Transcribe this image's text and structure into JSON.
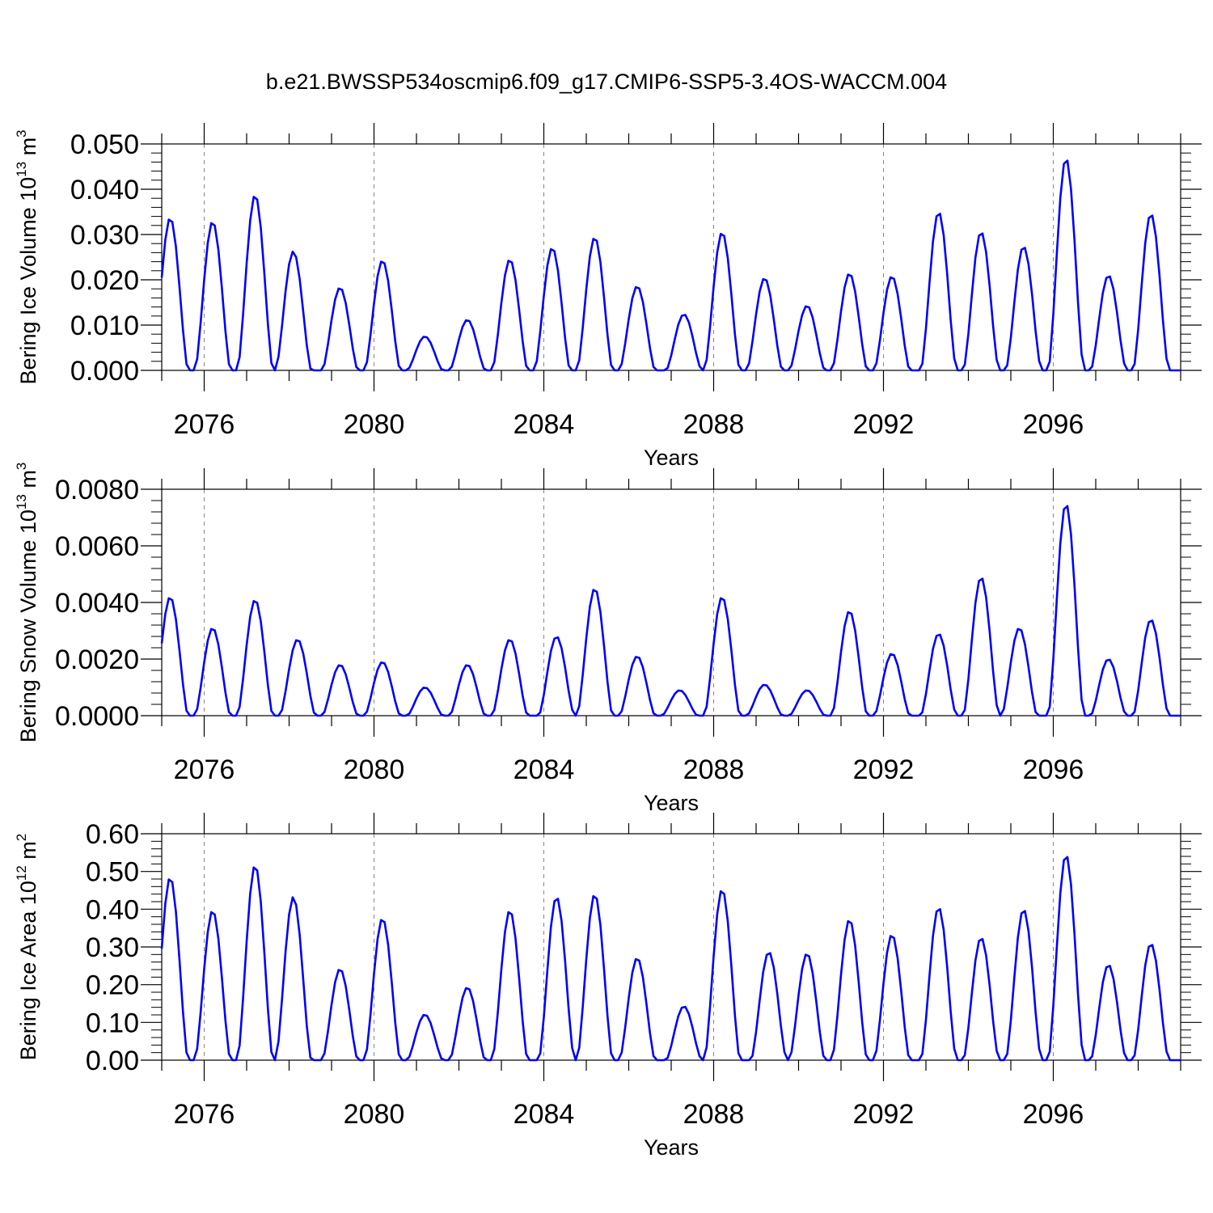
{
  "title": "b.e21.BWSSP534oscmip6.f09_g17.CMIP6-SSP5-3.4OS-WACCM.004",
  "chart_data": [
    {
      "type": "line",
      "ylabel": "Bering Ice Volume",
      "ylabel_unit_base": "10",
      "ylabel_unit_exp": "13",
      "ylabel_unit_tail": " m",
      "ylabel_unit_tail_exp": "3",
      "xlabel": "Years",
      "ylim": [
        0,
        0.05
      ],
      "yticks": [
        "0.000",
        "0.010",
        "0.020",
        "0.030",
        "0.040",
        "0.050"
      ],
      "xticks": [
        2076,
        2080,
        2084,
        2088,
        2092,
        2096
      ],
      "xlim": [
        2075.0,
        2099.0
      ],
      "line_color": "#0000ff",
      "series": [
        {
          "peaks": [
            [
              2075.2,
              0.0337
            ],
            [
              2076.2,
              0.0329
            ],
            [
              2077.2,
              0.0388
            ],
            [
              2078.1,
              0.0263
            ],
            [
              2079.2,
              0.0183
            ],
            [
              2080.2,
              0.0243
            ],
            [
              2081.2,
              0.0075
            ],
            [
              2082.2,
              0.0112
            ],
            [
              2083.2,
              0.0245
            ],
            [
              2084.2,
              0.0271
            ],
            [
              2085.2,
              0.0294
            ],
            [
              2086.2,
              0.0186
            ],
            [
              2087.3,
              0.0124
            ],
            [
              2088.2,
              0.0305
            ],
            [
              2089.2,
              0.0204
            ],
            [
              2090.2,
              0.0143
            ],
            [
              2091.2,
              0.0214
            ],
            [
              2092.2,
              0.0208
            ],
            [
              2093.3,
              0.035
            ],
            [
              2094.3,
              0.0306
            ],
            [
              2095.3,
              0.0274
            ],
            [
              2096.3,
              0.0469
            ],
            [
              2097.3,
              0.021
            ],
            [
              2098.3,
              0.0346
            ]
          ]
        }
      ]
    },
    {
      "type": "line",
      "ylabel": "Bering Snow Volume",
      "ylabel_unit_base": "10",
      "ylabel_unit_exp": "13",
      "ylabel_unit_tail": " m",
      "ylabel_unit_tail_exp": "3",
      "xlabel": "Years",
      "ylim": [
        0,
        0.008
      ],
      "yticks": [
        "0.0000",
        "0.0020",
        "0.0040",
        "0.0060",
        "0.0080"
      ],
      "xticks": [
        2076,
        2080,
        2084,
        2088,
        2092,
        2096
      ],
      "xlim": [
        2075.0,
        2099.0
      ],
      "line_color": "#0000ff",
      "series": [
        {
          "peaks": [
            [
              2075.2,
              0.0042
            ],
            [
              2076.2,
              0.0031
            ],
            [
              2077.2,
              0.0041
            ],
            [
              2078.2,
              0.0027
            ],
            [
              2079.2,
              0.0018
            ],
            [
              2080.2,
              0.0019
            ],
            [
              2081.2,
              0.001
            ],
            [
              2082.2,
              0.0018
            ],
            [
              2083.2,
              0.0027
            ],
            [
              2084.3,
              0.0028
            ],
            [
              2085.2,
              0.0045
            ],
            [
              2086.2,
              0.0021
            ],
            [
              2087.2,
              0.0009
            ],
            [
              2088.2,
              0.0042
            ],
            [
              2089.2,
              0.0011
            ],
            [
              2090.2,
              0.0009
            ],
            [
              2091.2,
              0.0037
            ],
            [
              2092.2,
              0.0022
            ],
            [
              2093.3,
              0.0029
            ],
            [
              2094.3,
              0.0049
            ],
            [
              2095.2,
              0.0031
            ],
            [
              2096.3,
              0.0075
            ],
            [
              2097.3,
              0.002
            ],
            [
              2098.3,
              0.0034
            ]
          ]
        }
      ]
    },
    {
      "type": "line",
      "ylabel": "Bering Ice Area",
      "ylabel_unit_base": "10",
      "ylabel_unit_exp": "12",
      "ylabel_unit_tail": " m",
      "ylabel_unit_tail_exp": "2",
      "xlabel": "Years",
      "ylim": [
        0,
        0.6
      ],
      "yticks": [
        "0.00",
        "0.10",
        "0.20",
        "0.30",
        "0.40",
        "0.50",
        "0.60"
      ],
      "xticks": [
        2076,
        2080,
        2084,
        2088,
        2092,
        2096
      ],
      "xlim": [
        2075.0,
        2099.0
      ],
      "line_color": "#0000ff",
      "series": [
        {
          "peaks": [
            [
              2075.2,
              0.485
            ],
            [
              2076.2,
              0.397
            ],
            [
              2077.2,
              0.517
            ],
            [
              2078.1,
              0.433
            ],
            [
              2079.2,
              0.242
            ],
            [
              2080.2,
              0.376
            ],
            [
              2081.2,
              0.121
            ],
            [
              2082.2,
              0.193
            ],
            [
              2083.2,
              0.397
            ],
            [
              2084.3,
              0.433
            ],
            [
              2085.2,
              0.44
            ],
            [
              2086.2,
              0.271
            ],
            [
              2087.3,
              0.143
            ],
            [
              2088.2,
              0.453
            ],
            [
              2089.3,
              0.287
            ],
            [
              2090.2,
              0.283
            ],
            [
              2091.2,
              0.373
            ],
            [
              2092.2,
              0.333
            ],
            [
              2093.3,
              0.405
            ],
            [
              2094.3,
              0.325
            ],
            [
              2095.3,
              0.4
            ],
            [
              2096.3,
              0.545
            ],
            [
              2097.3,
              0.253
            ],
            [
              2098.3,
              0.309
            ]
          ]
        }
      ]
    }
  ]
}
